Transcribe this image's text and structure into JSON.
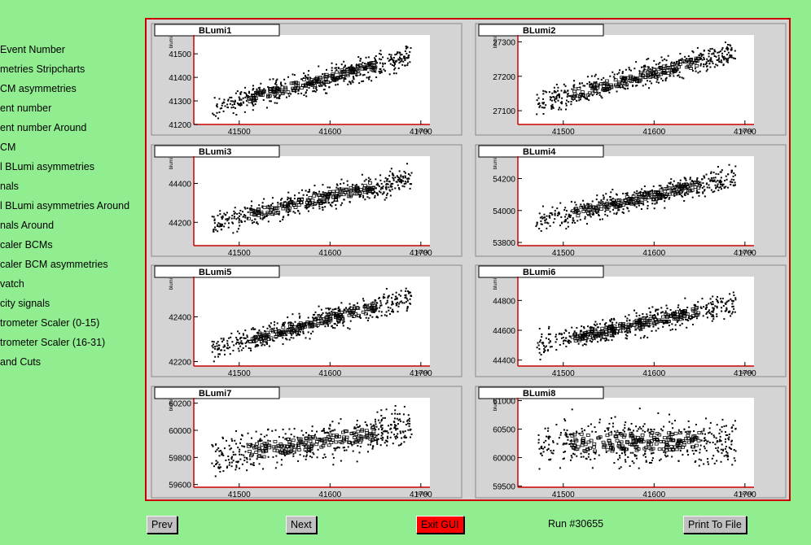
{
  "sidebar": {
    "items": [
      {
        "label": "Event Number"
      },
      {
        "label": "metries Stripcharts"
      },
      {
        "label": "CM asymmetries"
      },
      {
        "label": "ent number"
      },
      {
        "label": "ent number Around"
      },
      {
        "label": "CM"
      },
      {
        "label": "l BLumi asymmetries"
      },
      {
        "label": "nals"
      },
      {
        "label": "l BLumi asymmetries Around"
      },
      {
        "label": "nals Around"
      },
      {
        "label": "caler BCMs"
      },
      {
        "label": "caler BCM asymmetries"
      },
      {
        "label": "vatch"
      },
      {
        "label": "city signals"
      },
      {
        "label": "trometer Scaler (0-15)"
      },
      {
        "label": "trometer Scaler (16-31)"
      },
      {
        "label": " and Cuts"
      }
    ]
  },
  "buttons": {
    "prev": "Prev",
    "next": "Next",
    "exit": "Exit GUI",
    "print": "Print To File"
  },
  "run_label": "Run #30655",
  "colors": {
    "background": "#90ee90",
    "frame": "#cc0000",
    "axis": "#cc0000",
    "exit_button": "#ff0000"
  },
  "chart_data": [
    {
      "type": "scatter",
      "title": "BLumi1",
      "xlabel": "bcm4",
      "ylabel": "blumi",
      "xlim": [
        41450,
        41710
      ],
      "ylim": [
        41200,
        41580
      ],
      "xticks": [
        41500,
        41600,
        41700
      ],
      "yticks": [
        41200,
        41300,
        41400,
        41500
      ],
      "trend": {
        "x": [
          41470,
          41690
        ],
        "y": [
          41270,
          41490
        ]
      },
      "spread": 55
    },
    {
      "type": "scatter",
      "title": "BLumi2",
      "xlabel": "bcm4",
      "ylabel": "blumi",
      "xlim": [
        41450,
        41710
      ],
      "ylim": [
        27060,
        27320
      ],
      "xticks": [
        41500,
        41600,
        41700
      ],
      "yticks": [
        27100,
        27200,
        27300
      ],
      "trend": {
        "x": [
          41470,
          41690
        ],
        "y": [
          27120,
          27270
        ]
      },
      "spread": 40
    },
    {
      "type": "scatter",
      "title": "BLumi3",
      "xlabel": "bcm4",
      "ylabel": "blumi",
      "xlim": [
        41450,
        41710
      ],
      "ylim": [
        44080,
        44540
      ],
      "xticks": [
        41500,
        41600,
        41700
      ],
      "yticks": [
        44200,
        44400
      ],
      "trend": {
        "x": [
          41470,
          41690
        ],
        "y": [
          44190,
          44430
        ]
      },
      "spread": 70
    },
    {
      "type": "scatter",
      "title": "BLumi4",
      "xlabel": "bcm4",
      "ylabel": "blumi",
      "xlim": [
        41450,
        41710
      ],
      "ylim": [
        53780,
        54340
      ],
      "xticks": [
        41500,
        41600,
        41700
      ],
      "yticks": [
        53800,
        54000,
        54200
      ],
      "trend": {
        "x": [
          41470,
          41690
        ],
        "y": [
          53930,
          54210
        ]
      },
      "spread": 80
    },
    {
      "type": "scatter",
      "title": "BLumi5",
      "xlabel": "bcm4",
      "ylabel": "blumi",
      "xlim": [
        41450,
        41710
      ],
      "ylim": [
        42180,
        42580
      ],
      "xticks": [
        41500,
        41600,
        41700
      ],
      "yticks": [
        42200,
        42400
      ],
      "trend": {
        "x": [
          41470,
          41690
        ],
        "y": [
          42250,
          42490
        ]
      },
      "spread": 60
    },
    {
      "type": "scatter",
      "title": "BLumi6",
      "xlabel": "bcm4",
      "ylabel": "blumi",
      "xlim": [
        41450,
        41710
      ],
      "ylim": [
        44360,
        44960
      ],
      "xticks": [
        41500,
        41600,
        41700
      ],
      "yticks": [
        44400,
        44600,
        44800
      ],
      "trend": {
        "x": [
          41470,
          41690
        ],
        "y": [
          44500,
          44780
        ]
      },
      "spread": 90
    },
    {
      "type": "scatter",
      "title": "BLumi7",
      "xlabel": "bcm4",
      "ylabel": "blumi",
      "xlim": [
        41450,
        41710
      ],
      "ylim": [
        59580,
        60240
      ],
      "xticks": [
        41500,
        41600,
        41700
      ],
      "yticks": [
        59600,
        59800,
        60000,
        60200
      ],
      "trend": {
        "x": [
          41470,
          41690
        ],
        "y": [
          59800,
          60020
        ]
      },
      "spread": 150
    },
    {
      "type": "scatter",
      "title": "BLumi8",
      "xlabel": "bcm4",
      "ylabel": "blumi",
      "xlim": [
        41450,
        41710
      ],
      "ylim": [
        59480,
        61050
      ],
      "xticks": [
        41500,
        41600,
        41700
      ],
      "yticks": [
        59500,
        60000,
        60500,
        61000
      ],
      "trend": {
        "x": [
          41470,
          41690
        ],
        "y": [
          60250,
          60300
        ]
      },
      "spread": 450
    }
  ]
}
